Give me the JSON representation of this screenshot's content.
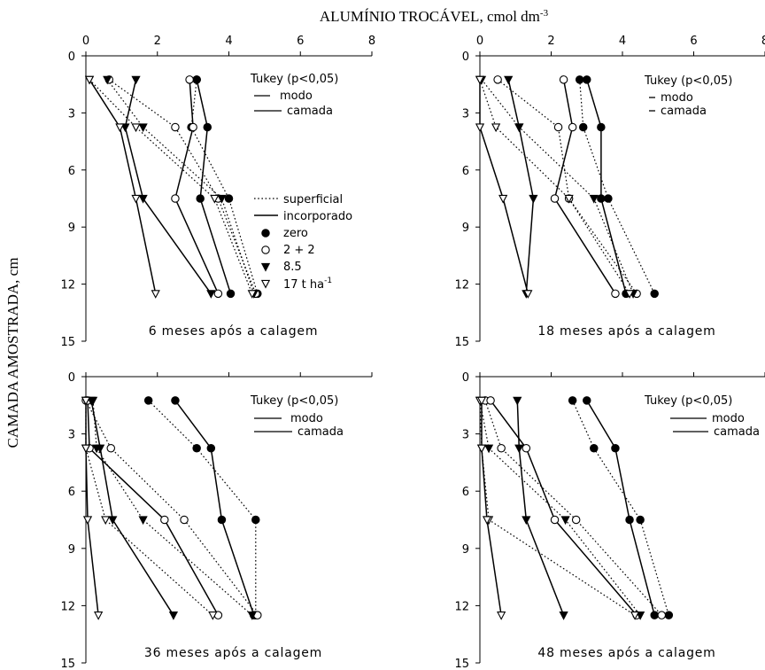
{
  "figure": {
    "xlabel_main": "ALUMÍNIO TROCÁVEL, cmol dm",
    "xlabel_sup": "-3",
    "ylabel": "CAMADA AMOSTRADA, cm"
  },
  "legend": {
    "application": [
      {
        "label": "superficial",
        "style": "dotted"
      },
      {
        "label": "incorporado",
        "style": "solid"
      }
    ],
    "doses": [
      {
        "label": "zero",
        "marker": "filled-circle"
      },
      {
        "label": "2 + 2",
        "marker": "open-circle"
      },
      {
        "label": "8.5",
        "marker": "filled-triangle-down"
      },
      {
        "label": "17 t ha",
        "sup": "-1",
        "marker": "open-triangle-down"
      }
    ]
  },
  "tukey": {
    "title": "Tukey (p<0,05)",
    "modo": "modo",
    "camada": "camada"
  },
  "chart_data": [
    {
      "type": "line",
      "title": "6 meses após a calagem",
      "xlim": [
        0,
        8
      ],
      "ylim": [
        15,
        0
      ],
      "xticks": [
        0,
        2,
        4,
        6,
        8
      ],
      "yticks": [
        0,
        3,
        6,
        9,
        12,
        15
      ],
      "depths": [
        1.25,
        3.75,
        7.5,
        12.5
      ],
      "series": [
        {
          "dose": "zero",
          "mode": "superficial",
          "x": [
            3.1,
            2.95,
            4.0,
            4.8
          ]
        },
        {
          "dose": "zero",
          "mode": "incorporado",
          "x": [
            3.1,
            3.4,
            3.2,
            4.05
          ]
        },
        {
          "dose": "2 + 2",
          "mode": "superficial",
          "x": [
            0.65,
            2.5,
            3.7,
            4.75
          ]
        },
        {
          "dose": "2 + 2",
          "mode": "incorporado",
          "x": [
            2.9,
            3.0,
            2.5,
            3.7
          ]
        },
        {
          "dose": "8.5",
          "mode": "superficial",
          "x": [
            0.6,
            1.6,
            3.8,
            4.7
          ]
        },
        {
          "dose": "8.5",
          "mode": "incorporado",
          "x": [
            1.4,
            1.1,
            1.6,
            3.5
          ]
        },
        {
          "dose": "17 t ha-1",
          "mode": "superficial",
          "x": [
            0.1,
            1.4,
            3.6,
            4.65
          ]
        },
        {
          "dose": "17 t ha-1",
          "mode": "incorporado",
          "x": [
            0.1,
            0.95,
            1.4,
            1.95
          ]
        }
      ]
    },
    {
      "type": "line",
      "title": "18 meses após a calagem",
      "xlim": [
        0,
        8
      ],
      "ylim": [
        15,
        0
      ],
      "xticks": [
        0,
        2,
        4,
        6,
        8
      ],
      "yticks": [
        0,
        3,
        6,
        9,
        12,
        15
      ],
      "depths": [
        1.25,
        3.75,
        7.5,
        12.5
      ],
      "series": [
        {
          "dose": "zero",
          "mode": "superficial",
          "x": [
            2.8,
            2.9,
            3.6,
            4.9
          ]
        },
        {
          "dose": "zero",
          "mode": "incorporado",
          "x": [
            3.0,
            3.4,
            3.4,
            4.1
          ]
        },
        {
          "dose": "2 + 2",
          "mode": "superficial",
          "x": [
            0.5,
            2.2,
            2.5,
            4.4
          ]
        },
        {
          "dose": "2 + 2",
          "mode": "incorporado",
          "x": [
            2.35,
            2.6,
            2.1,
            3.8
          ]
        },
        {
          "dose": "8.5",
          "mode": "superficial",
          "x": [
            0.05,
            1.1,
            3.2,
            4.3
          ]
        },
        {
          "dose": "8.5",
          "mode": "incorporado",
          "x": [
            0.8,
            1.1,
            1.5,
            1.3
          ]
        },
        {
          "dose": "17 t ha-1",
          "mode": "superficial",
          "x": [
            0.0,
            0.45,
            2.5,
            4.2
          ]
        },
        {
          "dose": "17 t ha-1",
          "mode": "incorporado",
          "x": [
            0.0,
            0.0,
            0.65,
            1.35
          ]
        }
      ]
    },
    {
      "type": "line",
      "title": "36 meses após a calagem",
      "xlim": [
        0,
        8
      ],
      "ylim": [
        15,
        0
      ],
      "xticks": [
        0,
        2,
        4,
        6,
        8
      ],
      "yticks": [
        0,
        3,
        6,
        9,
        12,
        15
      ],
      "depths": [
        1.25,
        3.75,
        7.5,
        12.5
      ],
      "series": [
        {
          "dose": "zero",
          "mode": "superficial",
          "x": [
            1.75,
            3.1,
            4.75,
            4.75
          ]
        },
        {
          "dose": "zero",
          "mode": "incorporado",
          "x": [
            2.5,
            3.5,
            3.8,
            4.7
          ]
        },
        {
          "dose": "2 + 2",
          "mode": "superficial",
          "x": [
            0.0,
            0.7,
            2.75,
            4.8
          ]
        },
        {
          "dose": "2 + 2",
          "mode": "incorporado",
          "x": [
            0.05,
            0.1,
            2.2,
            3.7
          ]
        },
        {
          "dose": "8.5",
          "mode": "superficial",
          "x": [
            0.2,
            0.3,
            1.6,
            4.65
          ]
        },
        {
          "dose": "8.5",
          "mode": "incorporado",
          "x": [
            0.15,
            0.4,
            0.75,
            2.45
          ]
        },
        {
          "dose": "17 t ha-1",
          "mode": "superficial",
          "x": [
            0.0,
            0.0,
            0.55,
            3.55
          ]
        },
        {
          "dose": "17 t ha-1",
          "mode": "incorporado",
          "x": [
            0.0,
            0.0,
            0.05,
            0.35
          ]
        }
      ]
    },
    {
      "type": "line",
      "title": "48 meses após a calagem",
      "xlim": [
        0,
        8
      ],
      "ylim": [
        15,
        0
      ],
      "xticks": [
        0,
        2,
        4,
        6,
        8
      ],
      "yticks": [
        0,
        3,
        6,
        9,
        12,
        15
      ],
      "depths": [
        1.25,
        3.75,
        7.5,
        12.5
      ],
      "series": [
        {
          "dose": "zero",
          "mode": "superficial",
          "x": [
            2.6,
            3.2,
            4.5,
            5.3
          ]
        },
        {
          "dose": "zero",
          "mode": "incorporado",
          "x": [
            3.0,
            3.8,
            4.2,
            4.9
          ]
        },
        {
          "dose": "2 + 2",
          "mode": "superficial",
          "x": [
            0.15,
            0.6,
            2.7,
            5.1
          ]
        },
        {
          "dose": "2 + 2",
          "mode": "incorporado",
          "x": [
            0.3,
            1.3,
            2.1,
            4.4
          ]
        },
        {
          "dose": "8.5",
          "mode": "superficial",
          "x": [
            0.0,
            0.25,
            2.4,
            4.5
          ]
        },
        {
          "dose": "8.5",
          "mode": "incorporado",
          "x": [
            1.05,
            1.1,
            1.3,
            2.35
          ]
        },
        {
          "dose": "17 t ha-1",
          "mode": "superficial",
          "x": [
            0.0,
            0.05,
            0.25,
            4.35
          ]
        },
        {
          "dose": "17 t ha-1",
          "mode": "incorporado",
          "x": [
            0.05,
            0.05,
            0.2,
            0.6
          ]
        }
      ]
    }
  ]
}
